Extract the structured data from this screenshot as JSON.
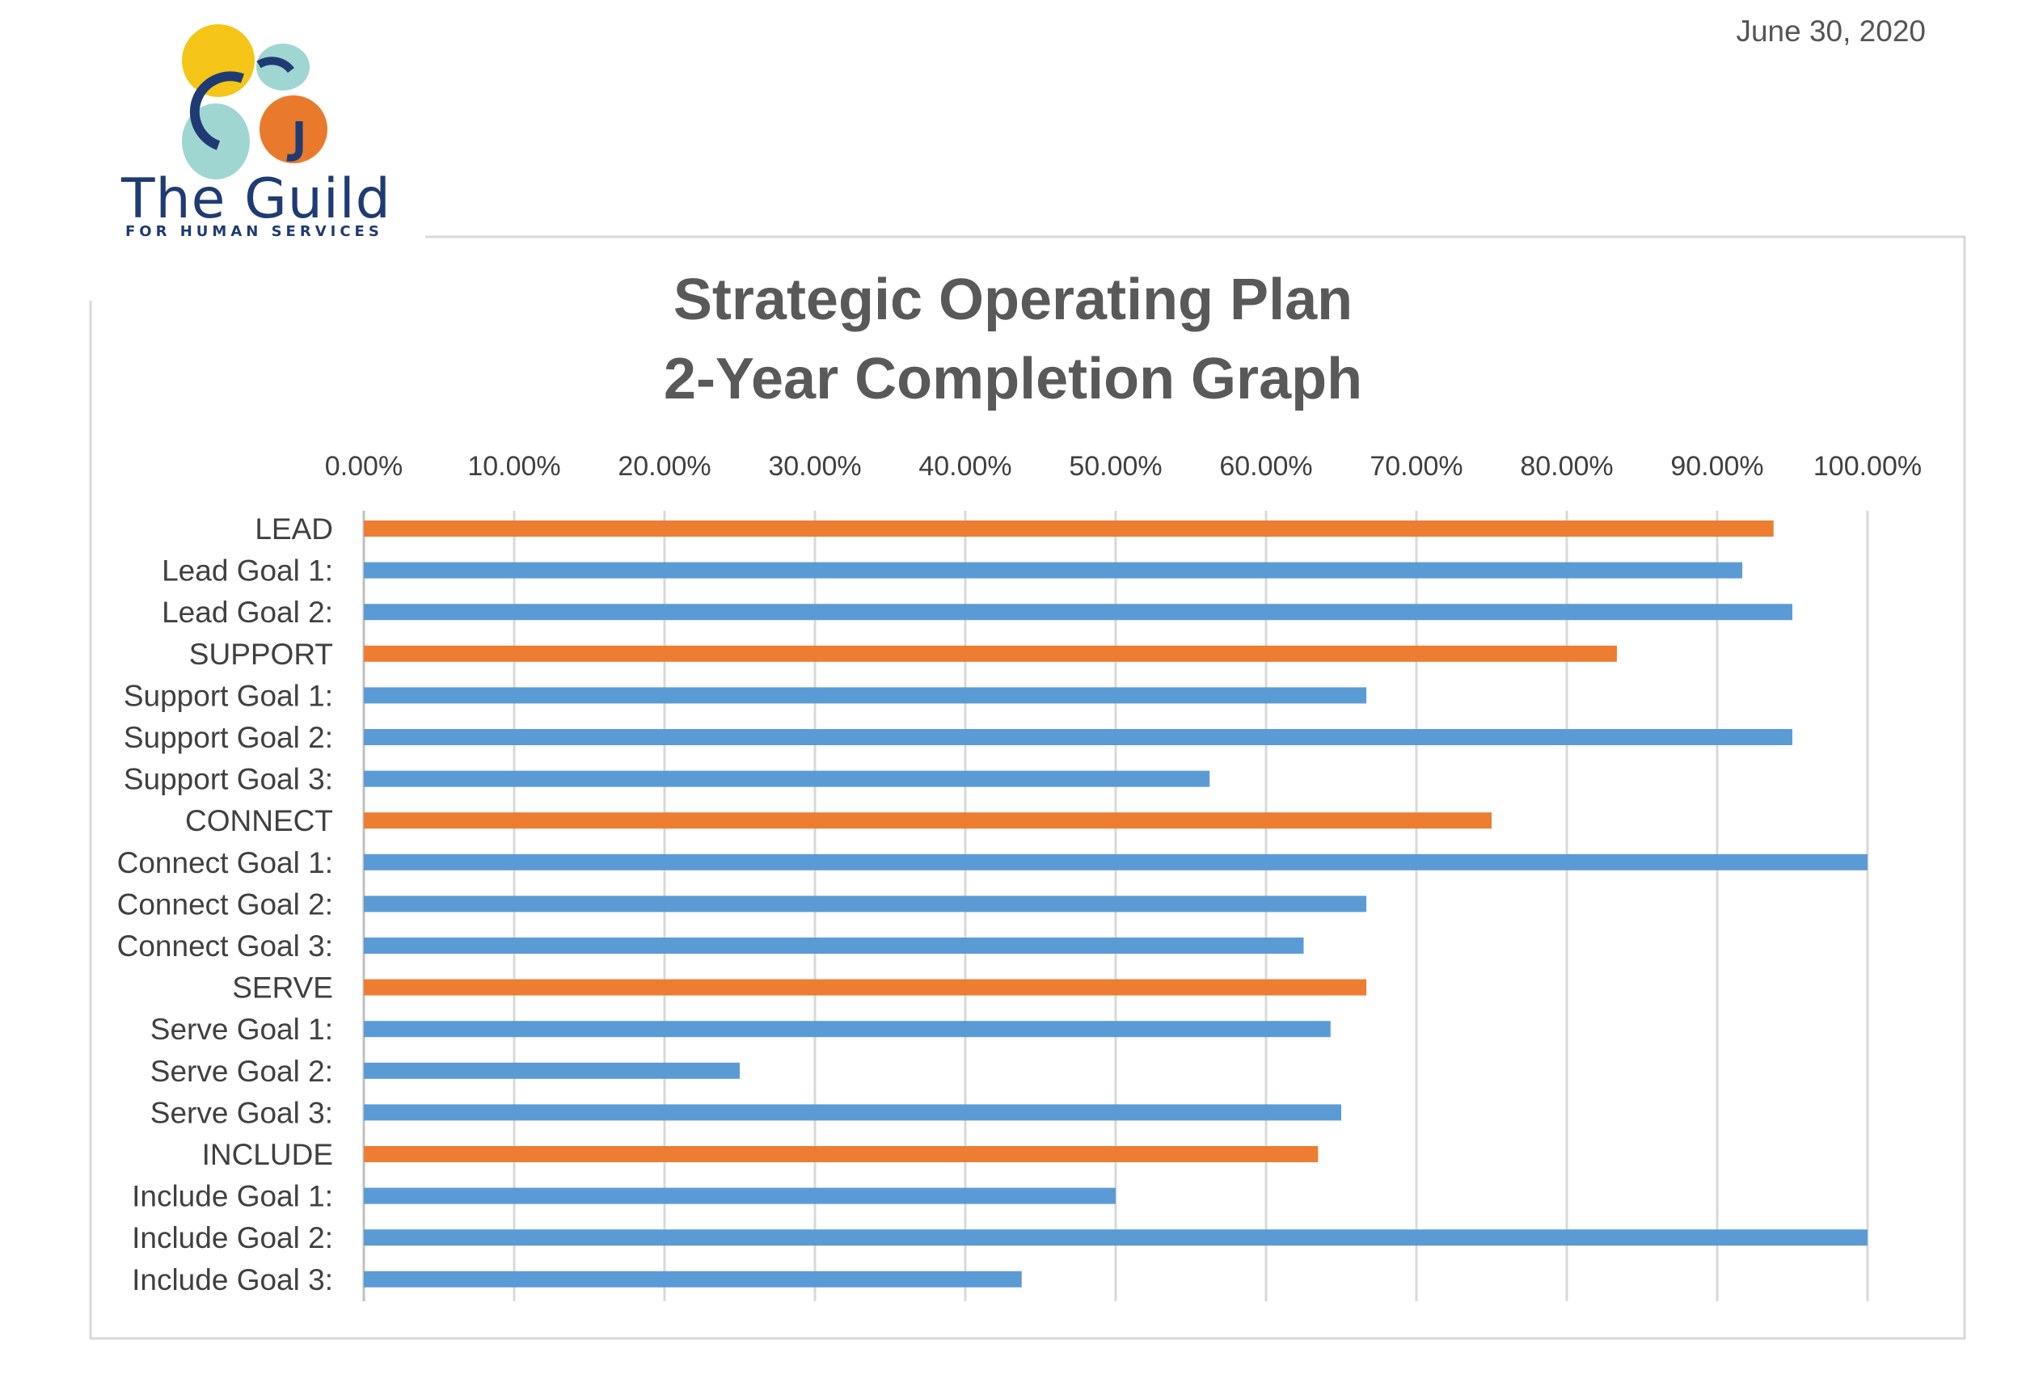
{
  "date": "June 30, 2020",
  "logo": {
    "name": "The Guild",
    "subtitle": "FOR HUMAN SERVICES",
    "colors": [
      "#f5c518",
      "#9fd6d2",
      "#1f3b73",
      "#e97a2c"
    ]
  },
  "chart_data": {
    "type": "bar",
    "orientation": "horizontal",
    "title_line1": "Strategic Operating Plan",
    "title_line2": "2-Year Completion Graph",
    "xlim": [
      0,
      1
    ],
    "ticks": [
      "0.00%",
      "10.00%",
      "20.00%",
      "30.00%",
      "40.00%",
      "50.00%",
      "60.00%",
      "70.00%",
      "80.00%",
      "90.00%",
      "100.00%"
    ],
    "grid": true,
    "categories": [
      "LEAD",
      "Lead Goal 1:",
      "Lead Goal 2:",
      "SUPPORT",
      "Support Goal 1:",
      "Support Goal 2:",
      "Support Goal 3:",
      "CONNECT",
      "Connect Goal 1:",
      "Connect Goal 2:",
      "Connect Goal 3:",
      "SERVE",
      "Serve Goal 1:",
      "Serve Goal 2:",
      "Serve Goal 3:",
      "INCLUDE",
      "Include Goal 1:",
      "Include Goal 2:",
      "Include Goal 3:"
    ],
    "values": [
      0.9375,
      0.9167,
      0.95,
      0.8333,
      0.6667,
      0.95,
      0.5625,
      0.75,
      1.0,
      0.6667,
      0.625,
      0.6667,
      0.6429,
      0.25,
      0.65,
      0.6346,
      0.5,
      1.0,
      0.4375
    ],
    "kinds": [
      "pillar",
      "goal",
      "goal",
      "pillar",
      "goal",
      "goal",
      "goal",
      "pillar",
      "goal",
      "goal",
      "goal",
      "pillar",
      "goal",
      "goal",
      "goal",
      "pillar",
      "goal",
      "goal",
      "goal"
    ],
    "colors": {
      "pillar": "#ed7d31",
      "goal": "#5b9bd5",
      "grid": "#d9d9d9",
      "frame": "#d9d9d9"
    }
  }
}
